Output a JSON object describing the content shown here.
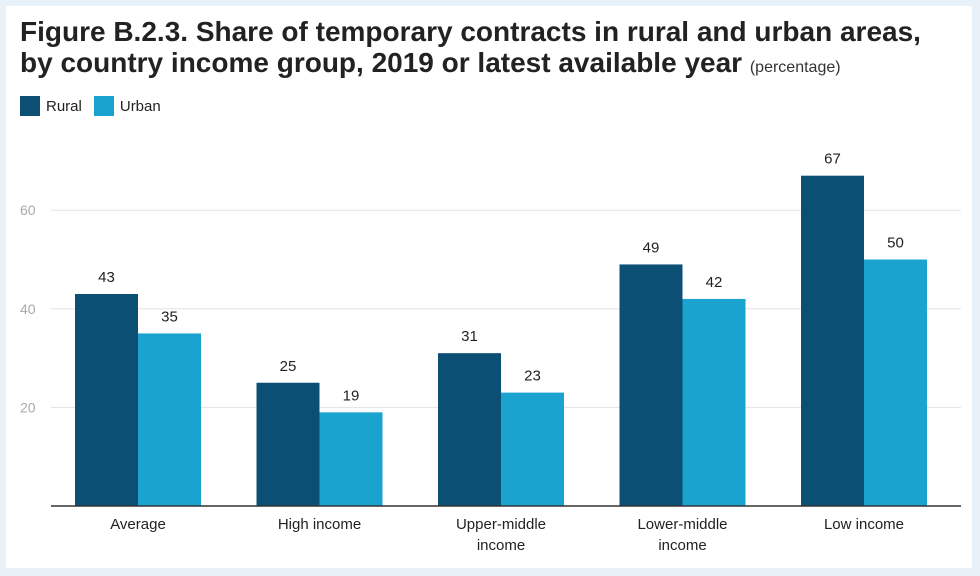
{
  "chart_data": {
    "type": "bar",
    "title": "Figure B.2.3. Share of temporary contracts in rural and urban areas, by country income group, 2019 or latest available year",
    "title_line1": "Figure B.2.3. Share of temporary contracts in rural and urban areas,",
    "title_line2": "by country income group, 2019 or latest available year",
    "subtitle": "(percentage)",
    "xlabel": "",
    "ylabel": "",
    "ylim": [
      0,
      75
    ],
    "yticks": [
      20,
      40,
      60
    ],
    "grid": true,
    "legend_position": "top-left",
    "categories": [
      "Average",
      "High income",
      "Upper-middle income",
      "Lower-middle income",
      "Low income"
    ],
    "category_lines": [
      [
        "Average"
      ],
      [
        "High income"
      ],
      [
        "Upper-middle",
        "income"
      ],
      [
        "Lower-middle",
        "income"
      ],
      [
        "Low income"
      ]
    ],
    "series": [
      {
        "name": "Rural",
        "color": "#0b4f74",
        "values": [
          43,
          25,
          31,
          49,
          67
        ]
      },
      {
        "name": "Urban",
        "color": "#1ba3cf",
        "values": [
          35,
          19,
          23,
          42,
          50
        ]
      }
    ]
  }
}
